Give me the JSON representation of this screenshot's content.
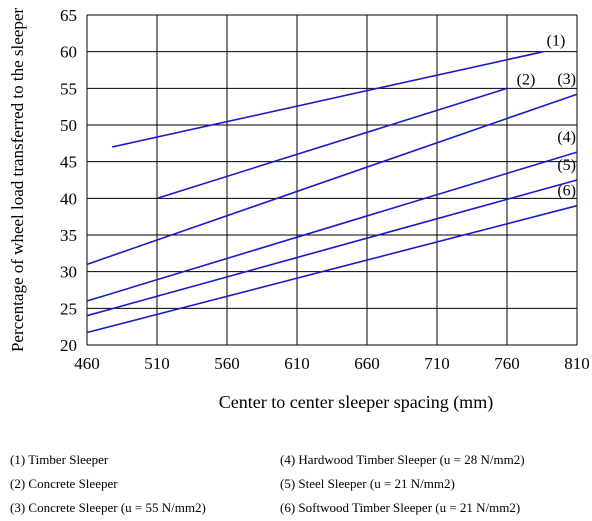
{
  "chart_data": {
    "type": "line",
    "xlabel": "Center to center sleeper spacing (mm)",
    "ylabel": "Percentage of wheel load transferred to the sleeper",
    "xlim": [
      460,
      810
    ],
    "ylim": [
      20,
      65
    ],
    "x_ticks": [
      460,
      510,
      560,
      610,
      660,
      710,
      760,
      810
    ],
    "y_ticks": [
      20,
      25,
      30,
      35,
      40,
      45,
      50,
      55,
      60,
      65
    ],
    "grid": true,
    "series": [
      {
        "name": "(1)",
        "x": [
          478,
          786
        ],
        "y": [
          47,
          60
        ]
      },
      {
        "name": "(2)",
        "x": [
          510,
          760
        ],
        "y": [
          40,
          55
        ]
      },
      {
        "name": "(3)",
        "x": [
          460,
          810
        ],
        "y": [
          31,
          54.2
        ]
      },
      {
        "name": "(4)",
        "x": [
          460,
          810
        ],
        "y": [
          26,
          46.3
        ]
      },
      {
        "name": "(5)",
        "x": [
          460,
          810
        ],
        "y": [
          24,
          42.5
        ]
      },
      {
        "name": "(6)",
        "x": [
          460,
          810
        ],
        "y": [
          21.7,
          39
        ]
      }
    ],
    "line_color": "#1a1acc"
  },
  "legend": {
    "items": [
      "(1) Timber Sleeper",
      "(2) Concrete Sleeper",
      "(3) Concrete Sleeper (u = 55 N/mm2)",
      "(4) Hardwood Timber Sleeper (u = 28 N/mm2)",
      "(5) Steel Sleeper (u = 21 N/mm2)",
      "(6) Softwood Timber Sleeper (u = 21 N/mm2)"
    ]
  }
}
